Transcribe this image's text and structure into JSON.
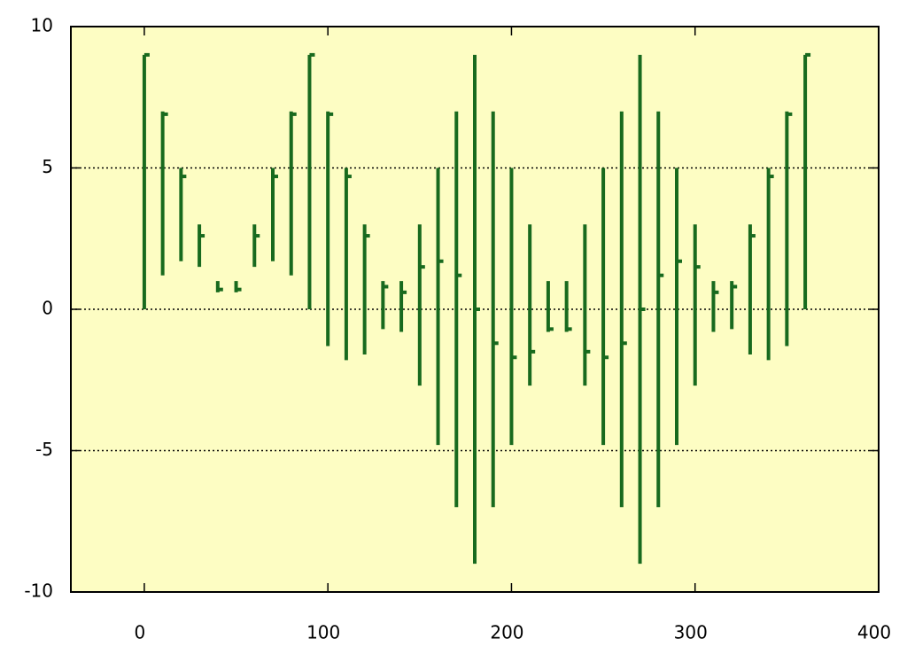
{
  "chart_data": {
    "type": "hlc",
    "x": [
      0,
      10,
      20,
      30,
      40,
      50,
      60,
      70,
      80,
      90,
      100,
      110,
      120,
      130,
      140,
      150,
      160,
      170,
      180,
      190,
      200,
      210,
      220,
      230,
      240,
      250,
      260,
      270,
      280,
      290,
      300,
      310,
      320,
      330,
      340,
      350,
      360
    ],
    "series": [
      {
        "name": "high",
        "color": "#186a1e",
        "values": [
          9,
          7,
          5,
          3,
          1,
          1,
          3,
          5,
          7,
          9,
          7,
          5,
          3,
          1,
          1,
          3,
          5,
          7,
          9,
          7,
          5,
          3,
          1,
          1,
          3,
          5,
          7,
          9,
          7,
          5,
          3,
          1,
          1,
          3,
          5,
          7,
          9
        ]
      },
      {
        "name": "low",
        "color": "#186a1e",
        "values": [
          0,
          1.2,
          1.7,
          1.5,
          0.6,
          0.6,
          1.5,
          1.7,
          1.2,
          0,
          -1.3,
          -1.8,
          -1.6,
          -0.7,
          -0.8,
          -2.7,
          -4.8,
          -7,
          -9,
          -7,
          -4.8,
          -2.7,
          -0.8,
          -0.8,
          -2.7,
          -4.8,
          -7,
          -9,
          -7,
          -4.8,
          -2.7,
          -0.8,
          -0.7,
          -1.6,
          -1.8,
          -1.3,
          0
        ]
      },
      {
        "name": "close",
        "color": "#186a1e",
        "values": [
          9,
          6.9,
          4.7,
          2.6,
          0.7,
          0.7,
          2.6,
          4.7,
          6.9,
          9,
          6.9,
          4.7,
          2.6,
          0.8,
          0.6,
          1.5,
          1.7,
          1.2,
          0,
          -1.2,
          -1.7,
          -1.5,
          -0.7,
          -0.7,
          -1.5,
          -1.7,
          -1.2,
          0,
          1.2,
          1.7,
          1.5,
          0.6,
          0.8,
          2.6,
          4.7,
          6.9,
          9
        ]
      }
    ],
    "xlim": [
      -40,
      400
    ],
    "xticks": [
      0,
      100,
      200,
      300,
      400
    ],
    "ylim": [
      -10,
      10
    ],
    "yticks": [
      -10,
      -5,
      0,
      5,
      10
    ],
    "grid": true,
    "background": "#fdfdc3"
  }
}
